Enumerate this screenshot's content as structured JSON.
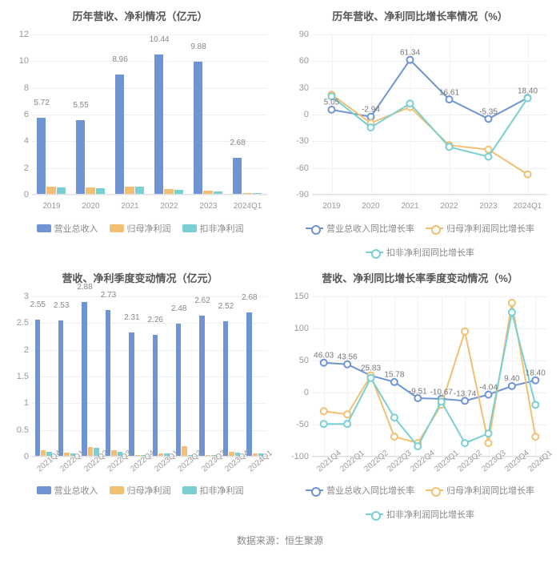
{
  "footer": "数据来源：恒生聚源",
  "colors": {
    "series_blue": "#6e94d4",
    "series_orange": "#f1c073",
    "series_cyan": "#78d0d3",
    "grid": "#efefef",
    "axis": "#e0e0e0",
    "text": "#999"
  },
  "panels": {
    "tl": {
      "title": "历年营收、净利情况（亿元）",
      "type": "bar",
      "ylim": [
        0,
        12
      ],
      "ystep": 2,
      "categories": [
        "2019",
        "2020",
        "2021",
        "2022",
        "2023",
        "2024Q1"
      ],
      "series": [
        {
          "name": "营业总收入",
          "color": "#6e94d4",
          "values": [
            5.72,
            5.55,
            8.96,
            10.44,
            9.88,
            2.68
          ],
          "showLabel": true
        },
        {
          "name": "归母净利润",
          "color": "#f1c073",
          "values": [
            0.55,
            0.5,
            0.55,
            0.35,
            0.22,
            0.05
          ],
          "showLabel": false
        },
        {
          "name": "扣非净利润",
          "color": "#78d0d3",
          "values": [
            0.5,
            0.45,
            0.52,
            0.3,
            0.18,
            0.04
          ],
          "showLabel": false
        }
      ],
      "legend": [
        "营业总收入",
        "归母净利润",
        "扣非净利润"
      ]
    },
    "tr": {
      "title": "历年营收、净利同比增长率情况（%）",
      "type": "line",
      "ylim": [
        -90,
        90
      ],
      "ystep": 30,
      "categories": [
        "2019",
        "2020",
        "2021",
        "2022",
        "2023",
        "2024Q1"
      ],
      "series": [
        {
          "name": "营业总收入同比增长率",
          "color": "#6e94d4",
          "values": [
            5.05,
            -2.94,
            61.34,
            16.61,
            -5.35,
            18.4
          ],
          "pointLabels": [
            "5.05",
            "-2.94",
            "61.34",
            "16.61",
            "-5.35",
            "18.40"
          ]
        },
        {
          "name": "归母净利润同比增长率",
          "color": "#f1c073",
          "values": [
            22,
            -10,
            8,
            -35,
            -40,
            -68
          ],
          "pointLabels": []
        },
        {
          "name": "扣非净利润同比增长率",
          "color": "#78d0d3",
          "values": [
            20,
            -15,
            12,
            -37,
            -48,
            18
          ],
          "pointLabels": []
        }
      ],
      "legend": [
        "营业总收入同比增长率",
        "归母净利润同比增长率",
        "扣非净利润同比增长率"
      ]
    },
    "bl": {
      "title": "营收、净利季度变动情况（亿元）",
      "type": "bar",
      "ylim": [
        0,
        3
      ],
      "ystep": 0.5,
      "rotateX": true,
      "categories": [
        "2021Q4",
        "2022Q1",
        "2022Q2",
        "2022Q3",
        "2022Q4",
        "2023Q1",
        "2023Q2",
        "2023Q3",
        "2023Q4",
        "2024Q1"
      ],
      "series": [
        {
          "name": "营业总收入",
          "color": "#6e94d4",
          "values": [
            2.55,
            2.53,
            2.88,
            2.73,
            2.31,
            2.26,
            2.48,
            2.62,
            2.52,
            2.68
          ],
          "showLabel": true
        },
        {
          "name": "归母净利润",
          "color": "#f1c073",
          "values": [
            0.1,
            0.06,
            0.17,
            0.1,
            0.02,
            0.05,
            0.18,
            0.02,
            0.08,
            0.05
          ],
          "showLabel": false
        },
        {
          "name": "扣非净利润",
          "color": "#78d0d3",
          "values": [
            0.08,
            0.05,
            0.15,
            0.08,
            0.01,
            0.04,
            0.02,
            0.01,
            0.06,
            0.04
          ],
          "showLabel": false
        }
      ],
      "legend": [
        "营业总收入",
        "归母净利润",
        "扣非净利润"
      ]
    },
    "br": {
      "title": "营收、净利同比增长率季度变动情况（%）",
      "type": "line",
      "ylim": [
        -100,
        150
      ],
      "ystep": 50,
      "rotateX": true,
      "categories": [
        "2021Q4",
        "2022Q1",
        "2022Q2",
        "2022Q3",
        "2022Q4",
        "2023Q1",
        "2023Q2",
        "2023Q3",
        "2023Q4",
        "2024Q1"
      ],
      "series": [
        {
          "name": "营业总收入同比增长率",
          "color": "#6e94d4",
          "values": [
            46.03,
            43.56,
            25.83,
            15.78,
            -9.51,
            -10.67,
            -13.74,
            -4.04,
            9.4,
            18.4
          ],
          "pointLabels": [
            "46.03",
            "43.56",
            "25.83",
            "15.78",
            "-9.51",
            "-10.67",
            "-13.74",
            "-4.04",
            "9.40",
            "18.40"
          ]
        },
        {
          "name": "归母净利润同比增长率",
          "color": "#f1c073",
          "values": [
            -30,
            -35,
            26,
            -70,
            -80,
            -20,
            95,
            -80,
            140,
            -70
          ],
          "pointLabels": []
        },
        {
          "name": "扣非净利润同比增长率",
          "color": "#78d0d3",
          "values": [
            -50,
            -50,
            22,
            -40,
            -85,
            -15,
            -80,
            -65,
            125,
            -20
          ],
          "pointLabels": []
        }
      ],
      "legend": [
        "营业总收入同比增长率",
        "归母净利润同比增长率",
        "扣非净利润同比增长率"
      ]
    }
  }
}
